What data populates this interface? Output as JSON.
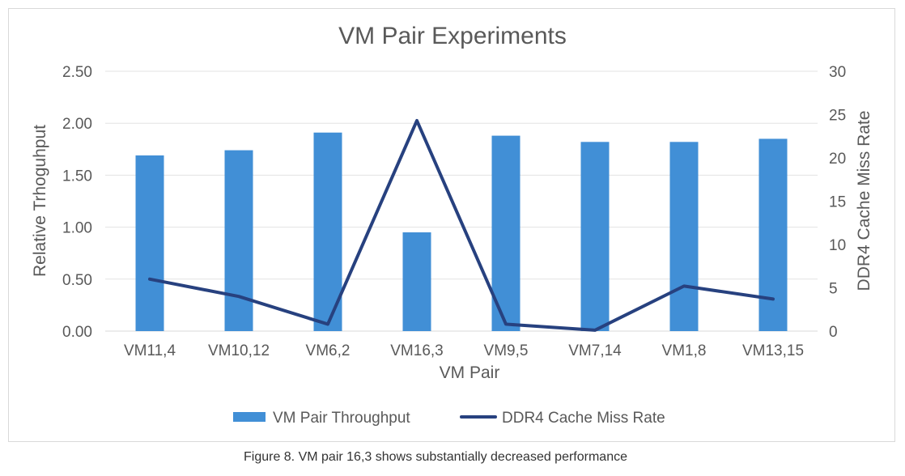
{
  "colors": {
    "bar": "#418fd6",
    "line": "#27417f",
    "grid": "#e3e3e3",
    "axis_text": "#595959",
    "axis_line": "#d9d9d9"
  },
  "caption": "Figure 8. VM pair 16,3 shows substantially decreased performance",
  "chart_data": {
    "type": "bar",
    "title": "VM Pair Experiments",
    "xlabel": "VM Pair",
    "ylabel": "Relative Trhoguhput",
    "y2label": "DDR4 Cache Miss Rate",
    "categories": [
      "VM11,4",
      "VM10,12",
      "VM6,2",
      "VM16,3",
      "VM9,5",
      "VM7,14",
      "VM1,8",
      "VM13,15"
    ],
    "ylim": [
      0,
      2.5
    ],
    "y2lim": [
      0,
      30
    ],
    "yticks": [
      "0.00",
      "0.50",
      "1.00",
      "1.50",
      "2.00",
      "2.50"
    ],
    "y2ticks": [
      "0",
      "5",
      "10",
      "15",
      "20",
      "25",
      "30"
    ],
    "grid": true,
    "legend_position": "bottom",
    "series": [
      {
        "name": "VM Pair Throughput",
        "type": "bar",
        "axis": "left",
        "values": [
          1.69,
          1.74,
          1.91,
          0.95,
          1.88,
          1.82,
          1.82,
          1.85
        ]
      },
      {
        "name": "DDR4 Cache Miss Rate",
        "type": "line",
        "axis": "right",
        "values": [
          6.0,
          4.0,
          0.8,
          24.3,
          0.8,
          0.1,
          5.2,
          3.7
        ]
      }
    ]
  }
}
